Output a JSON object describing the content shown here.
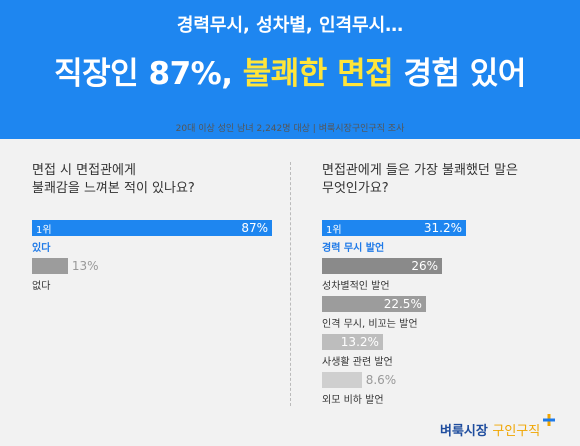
{
  "header": {
    "subtitle": "경력무시, 성차별, 인격무시…",
    "title_prefix": "직장인 87%, ",
    "title_highlight": "불쾌한 면접",
    "title_suffix": " 경험 있어",
    "source_note": "20대 이상 성인 남녀 2,242명 대상  |  벼룩시장구인구직 조사"
  },
  "left_question": {
    "line1": "면접 시 면접관에게",
    "line2": "불쾌감을 느껴본 적이 있나요?"
  },
  "right_question": {
    "line1": "면접관에게 들은 가장 불쾌했던 말은",
    "line2": "무엇인가요?"
  },
  "rank_label": "1위",
  "logo": {
    "main": "벼룩시장",
    "accent": "구인구직"
  },
  "colors": {
    "blue": "#1e86f0",
    "highlight": "#ffe53a",
    "gray_dark": "#8a8a8a",
    "gray_mid": "#9c9c9c",
    "gray_light": "#bdbdbd",
    "gray_lighter": "#cfcfcf"
  },
  "chart_data": [
    {
      "type": "bar",
      "title": "면접 시 면접관에게 불쾌감을 느껴본 적이 있나요?",
      "categories": [
        "있다",
        "없다"
      ],
      "values": [
        87,
        13
      ],
      "value_labels": [
        "87%",
        "13%"
      ],
      "unit": "%",
      "xlim": [
        0,
        100
      ]
    },
    {
      "type": "bar",
      "title": "면접관에게 들은 가장 불쾌했던 말은 무엇인가요?",
      "categories": [
        "경력 무시 발언",
        "성차별적인 발언",
        "인격 무시, 비꼬는 발언",
        "사생활 관련 발언",
        "외모 비하 발언"
      ],
      "values": [
        31.2,
        26,
        22.5,
        13.2,
        8.6
      ],
      "value_labels": [
        "31.2%",
        "26%",
        "22.5%",
        "13.2%",
        "8.6%"
      ],
      "unit": "%"
    }
  ]
}
